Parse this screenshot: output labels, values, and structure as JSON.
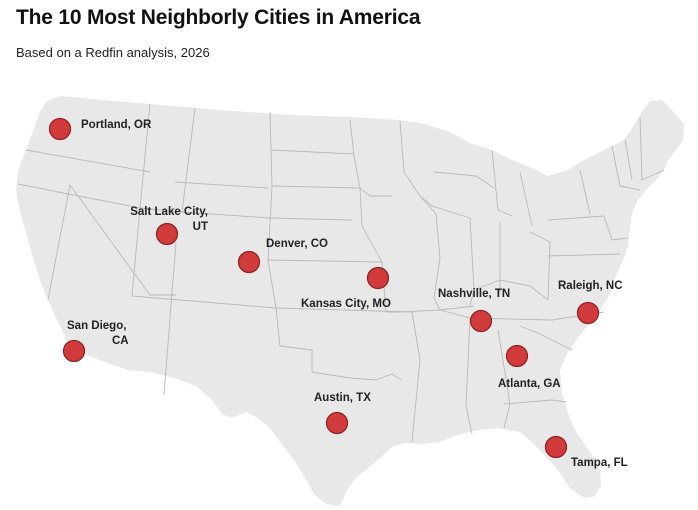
{
  "header": {
    "title": "The 10 Most Neighborly Cities in America",
    "subtitle": "Based on a Redfin analysis, 2026"
  },
  "colors": {
    "land": "#e8e8e8",
    "state_border": "#b9b9b9",
    "marker_fill": "#d23b3b",
    "marker_stroke": "#8e1f1f"
  },
  "cities": [
    {
      "name": "Portland, OR",
      "label_lines": [
        "Portland, OR"
      ],
      "lat": 45.52,
      "lon": -122.68
    },
    {
      "name": "Salt Lake City, UT",
      "label_lines": [
        "Salt Lake City,",
        "UT"
      ],
      "lat": 40.76,
      "lon": -111.89
    },
    {
      "name": "Denver, CO",
      "label_lines": [
        "Denver, CO"
      ],
      "lat": 39.74,
      "lon": -104.99
    },
    {
      "name": "San Diego, CA",
      "label_lines": [
        "San Diego,",
        "CA"
      ],
      "lat": 32.72,
      "lon": -117.16
    },
    {
      "name": "Kansas City, MO",
      "label_lines": [
        "Kansas City, MO"
      ],
      "lat": 39.1,
      "lon": -94.58
    },
    {
      "name": "Nashville, TN",
      "label_lines": [
        "Nashville, TN"
      ],
      "lat": 36.16,
      "lon": -86.78
    },
    {
      "name": "Raleigh, NC",
      "label_lines": [
        "Raleigh, NC"
      ],
      "lat": 35.78,
      "lon": -78.64
    },
    {
      "name": "Atlanta, GA",
      "label_lines": [
        "Atlanta, GA"
      ],
      "lat": 33.75,
      "lon": -84.39
    },
    {
      "name": "Austin, TX",
      "label_lines": [
        "Austin, TX"
      ],
      "lat": 30.27,
      "lon": -97.74
    },
    {
      "name": "Tampa, FL",
      "label_lines": [
        "Tampa, FL"
      ],
      "lat": 27.95,
      "lon": -82.46
    }
  ]
}
